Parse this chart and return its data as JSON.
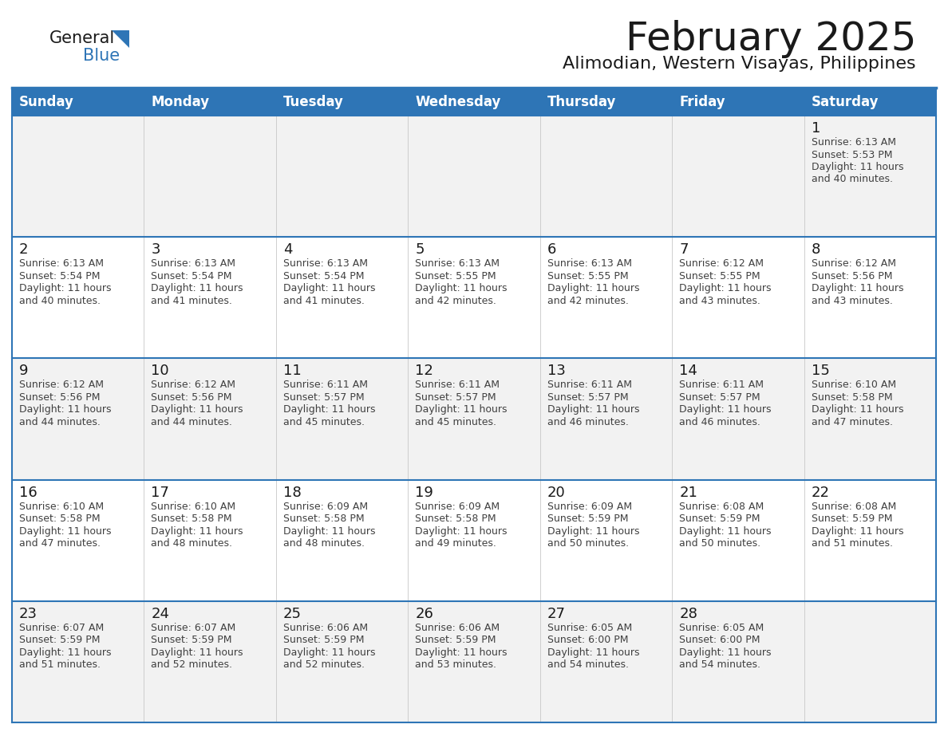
{
  "title": "February 2025",
  "subtitle": "Alimodian, Western Visayas, Philippines",
  "days_of_week": [
    "Sunday",
    "Monday",
    "Tuesday",
    "Wednesday",
    "Thursday",
    "Friday",
    "Saturday"
  ],
  "header_bg": "#2E75B6",
  "header_text": "#FFFFFF",
  "cell_bg_light": "#F2F2F2",
  "cell_bg_white": "#FFFFFF",
  "separator_color": "#2E75B6",
  "title_color": "#1A1A1A",
  "subtitle_color": "#1A1A1A",
  "day_number_color": "#1A1A1A",
  "detail_color": "#404040",
  "logo_text_color": "#1A1A1A",
  "logo_blue_color": "#2E75B6",
  "calendar_data": [
    {
      "day": 1,
      "col": 6,
      "row": 0,
      "sunrise": "6:13 AM",
      "sunset": "5:53 PM",
      "daylight_hours": 11,
      "daylight_minutes": 40
    },
    {
      "day": 2,
      "col": 0,
      "row": 1,
      "sunrise": "6:13 AM",
      "sunset": "5:54 PM",
      "daylight_hours": 11,
      "daylight_minutes": 40
    },
    {
      "day": 3,
      "col": 1,
      "row": 1,
      "sunrise": "6:13 AM",
      "sunset": "5:54 PM",
      "daylight_hours": 11,
      "daylight_minutes": 41
    },
    {
      "day": 4,
      "col": 2,
      "row": 1,
      "sunrise": "6:13 AM",
      "sunset": "5:54 PM",
      "daylight_hours": 11,
      "daylight_minutes": 41
    },
    {
      "day": 5,
      "col": 3,
      "row": 1,
      "sunrise": "6:13 AM",
      "sunset": "5:55 PM",
      "daylight_hours": 11,
      "daylight_minutes": 42
    },
    {
      "day": 6,
      "col": 4,
      "row": 1,
      "sunrise": "6:13 AM",
      "sunset": "5:55 PM",
      "daylight_hours": 11,
      "daylight_minutes": 42
    },
    {
      "day": 7,
      "col": 5,
      "row": 1,
      "sunrise": "6:12 AM",
      "sunset": "5:55 PM",
      "daylight_hours": 11,
      "daylight_minutes": 43
    },
    {
      "day": 8,
      "col": 6,
      "row": 1,
      "sunrise": "6:12 AM",
      "sunset": "5:56 PM",
      "daylight_hours": 11,
      "daylight_minutes": 43
    },
    {
      "day": 9,
      "col": 0,
      "row": 2,
      "sunrise": "6:12 AM",
      "sunset": "5:56 PM",
      "daylight_hours": 11,
      "daylight_minutes": 44
    },
    {
      "day": 10,
      "col": 1,
      "row": 2,
      "sunrise": "6:12 AM",
      "sunset": "5:56 PM",
      "daylight_hours": 11,
      "daylight_minutes": 44
    },
    {
      "day": 11,
      "col": 2,
      "row": 2,
      "sunrise": "6:11 AM",
      "sunset": "5:57 PM",
      "daylight_hours": 11,
      "daylight_minutes": 45
    },
    {
      "day": 12,
      "col": 3,
      "row": 2,
      "sunrise": "6:11 AM",
      "sunset": "5:57 PM",
      "daylight_hours": 11,
      "daylight_minutes": 45
    },
    {
      "day": 13,
      "col": 4,
      "row": 2,
      "sunrise": "6:11 AM",
      "sunset": "5:57 PM",
      "daylight_hours": 11,
      "daylight_minutes": 46
    },
    {
      "day": 14,
      "col": 5,
      "row": 2,
      "sunrise": "6:11 AM",
      "sunset": "5:57 PM",
      "daylight_hours": 11,
      "daylight_minutes": 46
    },
    {
      "day": 15,
      "col": 6,
      "row": 2,
      "sunrise": "6:10 AM",
      "sunset": "5:58 PM",
      "daylight_hours": 11,
      "daylight_minutes": 47
    },
    {
      "day": 16,
      "col": 0,
      "row": 3,
      "sunrise": "6:10 AM",
      "sunset": "5:58 PM",
      "daylight_hours": 11,
      "daylight_minutes": 47
    },
    {
      "day": 17,
      "col": 1,
      "row": 3,
      "sunrise": "6:10 AM",
      "sunset": "5:58 PM",
      "daylight_hours": 11,
      "daylight_minutes": 48
    },
    {
      "day": 18,
      "col": 2,
      "row": 3,
      "sunrise": "6:09 AM",
      "sunset": "5:58 PM",
      "daylight_hours": 11,
      "daylight_minutes": 48
    },
    {
      "day": 19,
      "col": 3,
      "row": 3,
      "sunrise": "6:09 AM",
      "sunset": "5:58 PM",
      "daylight_hours": 11,
      "daylight_minutes": 49
    },
    {
      "day": 20,
      "col": 4,
      "row": 3,
      "sunrise": "6:09 AM",
      "sunset": "5:59 PM",
      "daylight_hours": 11,
      "daylight_minutes": 50
    },
    {
      "day": 21,
      "col": 5,
      "row": 3,
      "sunrise": "6:08 AM",
      "sunset": "5:59 PM",
      "daylight_hours": 11,
      "daylight_minutes": 50
    },
    {
      "day": 22,
      "col": 6,
      "row": 3,
      "sunrise": "6:08 AM",
      "sunset": "5:59 PM",
      "daylight_hours": 11,
      "daylight_minutes": 51
    },
    {
      "day": 23,
      "col": 0,
      "row": 4,
      "sunrise": "6:07 AM",
      "sunset": "5:59 PM",
      "daylight_hours": 11,
      "daylight_minutes": 51
    },
    {
      "day": 24,
      "col": 1,
      "row": 4,
      "sunrise": "6:07 AM",
      "sunset": "5:59 PM",
      "daylight_hours": 11,
      "daylight_minutes": 52
    },
    {
      "day": 25,
      "col": 2,
      "row": 4,
      "sunrise": "6:06 AM",
      "sunset": "5:59 PM",
      "daylight_hours": 11,
      "daylight_minutes": 52
    },
    {
      "day": 26,
      "col": 3,
      "row": 4,
      "sunrise": "6:06 AM",
      "sunset": "5:59 PM",
      "daylight_hours": 11,
      "daylight_minutes": 53
    },
    {
      "day": 27,
      "col": 4,
      "row": 4,
      "sunrise": "6:05 AM",
      "sunset": "6:00 PM",
      "daylight_hours": 11,
      "daylight_minutes": 54
    },
    {
      "day": 28,
      "col": 5,
      "row": 4,
      "sunrise": "6:05 AM",
      "sunset": "6:00 PM",
      "daylight_hours": 11,
      "daylight_minutes": 54
    }
  ]
}
